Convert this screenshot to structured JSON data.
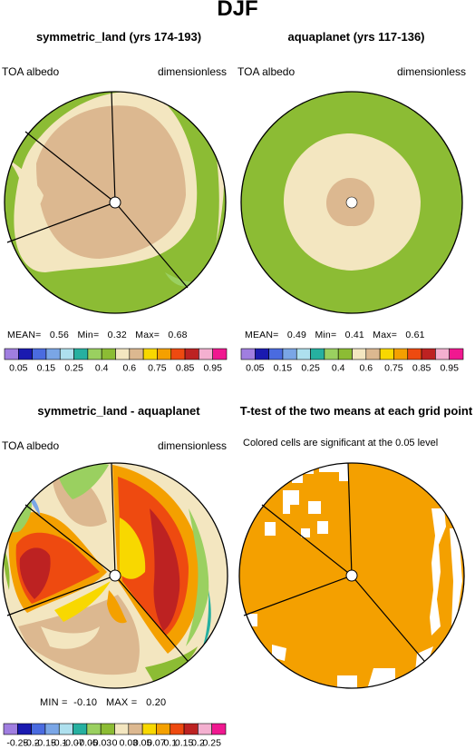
{
  "page": {
    "title": "DJF"
  },
  "colors": {
    "albedo": [
      "#a07ee0",
      "#1a1ab0",
      "#4a6be0",
      "#7aa6e6",
      "#aee0ee",
      "#26b0a0",
      "#9ad060",
      "#8cbc34",
      "#f3e6c0",
      "#dcb890",
      "#f8d800",
      "#f4a000",
      "#ee4a10",
      "#bd2222",
      "#f4b0d0",
      "#f01890"
    ],
    "diff": [
      "#a07ee0",
      "#1a1ab0",
      "#4a6be0",
      "#7aa6e6",
      "#aee0ee",
      "#26b0a0",
      "#9ad060",
      "#8cbc34",
      "#f3e6c0",
      "#dcb890",
      "#f8d800",
      "#f4a000",
      "#ee4a10",
      "#bd2222",
      "#f4b0d0",
      "#f01890"
    ],
    "ttest_significant": "#f4a000"
  },
  "panels": [
    {
      "title": "symmetric_land (yrs 174-193)",
      "left_label": "TOA albedo",
      "right_label": "dimensionless",
      "stats": {
        "mean_label": "MEAN=",
        "mean": "0.56",
        "min_label": "Min=",
        "min": "0.32",
        "max_label": "Max=",
        "max": "0.68"
      },
      "colorbar_ticks": [
        "0.05",
        "0.15",
        "0.25",
        "0.4",
        "0.6",
        "0.75",
        "0.85",
        "0.95"
      ]
    },
    {
      "title": "aquaplanet (yrs 117-136)",
      "left_label": "TOA albedo",
      "right_label": "dimensionless",
      "stats": {
        "mean_label": "MEAN=",
        "mean": "0.49",
        "min_label": "Min=",
        "min": "0.41",
        "max_label": "Max=",
        "max": "0.61"
      },
      "colorbar_ticks": [
        "0.05",
        "0.15",
        "0.25",
        "0.4",
        "0.6",
        "0.75",
        "0.85",
        "0.95"
      ]
    },
    {
      "title": "symmetric_land - aquaplanet",
      "left_label": "TOA albedo",
      "right_label": "dimensionless",
      "stats": {
        "min_label": "MIN =",
        "min": "-0.10",
        "max_label": "MAX =",
        "max": "0.20"
      },
      "colorbar_ticks": [
        "-0.25",
        "-0.2",
        "-0.15",
        "-0.1",
        "-0.07",
        "-0.05",
        "-0.03",
        "0",
        "0.03",
        "0.05",
        "0.07",
        "0.1",
        "0.15",
        "0.2",
        "0.25"
      ]
    },
    {
      "title": "T-test of the two means at each grid point",
      "subtitle": "Colored cells are significant at the 0.05 level"
    }
  ],
  "chart_data": [
    {
      "type": "heatmap",
      "projection": "polar",
      "title": "symmetric_land (yrs 174-193)",
      "variable": "TOA albedo",
      "units": "dimensionless",
      "mean": 0.56,
      "min": 0.32,
      "max": 0.68,
      "levels": [
        0.05,
        0.1,
        0.15,
        0.2,
        0.25,
        0.3,
        0.4,
        0.5,
        0.6,
        0.7,
        0.75,
        0.8,
        0.85,
        0.9,
        0.95
      ]
    },
    {
      "type": "heatmap",
      "projection": "polar",
      "title": "aquaplanet (yrs 117-136)",
      "variable": "TOA albedo",
      "units": "dimensionless",
      "mean": 0.49,
      "min": 0.41,
      "max": 0.61,
      "levels": [
        0.05,
        0.1,
        0.15,
        0.2,
        0.25,
        0.3,
        0.4,
        0.5,
        0.6,
        0.7,
        0.75,
        0.8,
        0.85,
        0.9,
        0.95
      ]
    },
    {
      "type": "heatmap",
      "projection": "polar",
      "title": "symmetric_land - aquaplanet",
      "variable": "TOA albedo",
      "units": "dimensionless",
      "min": -0.1,
      "max": 0.2,
      "levels": [
        -0.25,
        -0.2,
        -0.15,
        -0.1,
        -0.07,
        -0.05,
        -0.03,
        0,
        0.03,
        0.05,
        0.07,
        0.1,
        0.15,
        0.2,
        0.25
      ]
    },
    {
      "type": "heatmap",
      "projection": "polar",
      "title": "T-test of the two means at each grid point",
      "note": "Colored cells are significant at the 0.05 level"
    }
  ]
}
